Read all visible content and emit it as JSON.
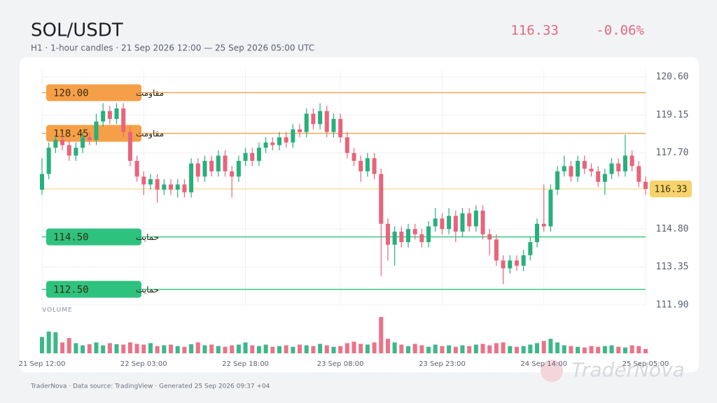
{
  "chart_data": {
    "type": "candlestick",
    "title": "SOL/USDT",
    "subtitle": "H1 · 1-hour candles · 21 Sep 2026 12:00 — 25 Sep 2026 05:00 UTC",
    "last_price": 116.33,
    "change": "-0.06%",
    "volume_label": "VOLUME",
    "footer": "TraderNova · Data source: TradingView · Generated 25 Sep 2026 09:37 +04",
    "watermark": "TraderNova",
    "up_color": "#26b07c",
    "down_color": "#e8647c",
    "ylim": [
      111.9,
      120.6
    ],
    "yticks": [
      {
        "value": 120.6,
        "label": "120.60"
      },
      119.15,
      {
        "value": 117.7,
        "label": "117.70"
      },
      {
        "value": 114.8,
        "label": "114.80"
      },
      113.35,
      {
        "value": 111.9,
        "label": "111.90"
      }
    ],
    "grid": true,
    "levels": [
      {
        "name": "مقاومت",
        "value": 120.0,
        "value_label": "120.00",
        "color": "#f5a048"
      },
      {
        "name": "مقاومت",
        "value": 118.45,
        "value_label": "118.45",
        "color": "#f5a048"
      },
      {
        "name": "حمایت",
        "value": 114.5,
        "value_label": "114.50",
        "color": "#2ec27e"
      },
      {
        "name": "حمایت",
        "value": 112.5,
        "value_label": "112.50",
        "color": "#2ec27e"
      }
    ],
    "categories": [
      "21 Sep 12:00",
      null,
      null,
      null,
      null,
      null,
      null,
      null,
      null,
      null,
      null,
      null,
      null,
      null,
      null,
      "22 Sep 03:00",
      null,
      null,
      null,
      null,
      null,
      null,
      null,
      null,
      null,
      null,
      null,
      null,
      null,
      null,
      "22 Sep 18:00",
      null,
      null,
      null,
      null,
      null,
      null,
      null,
      null,
      null,
      null,
      null,
      null,
      null,
      "23 Sep 08:00",
      null,
      null,
      null,
      null,
      null,
      null,
      null,
      null,
      null,
      null,
      null,
      null,
      null,
      null,
      "23 Sep 23:00",
      null,
      null,
      null,
      null,
      null,
      null,
      null,
      null,
      null,
      null,
      null,
      null,
      null,
      null,
      "24 Sep 14:00",
      null,
      null,
      null,
      null,
      null,
      null,
      null,
      null,
      null,
      null,
      null,
      null,
      null,
      null,
      "25 Sep 05:00"
    ],
    "open": [
      116.3,
      116.9,
      117.9,
      118.2,
      118.0,
      117.6,
      117.9,
      118.3,
      118.2,
      118.9,
      119.3,
      119.0,
      119.4,
      118.5,
      117.4,
      116.8,
      116.5,
      116.7,
      116.3,
      116.5,
      116.3,
      116.5,
      116.2,
      117.3,
      116.8,
      117.4,
      117.0,
      117.6,
      117.0,
      116.8,
      117.4,
      117.7,
      117.4,
      117.9,
      118.1,
      118.0,
      118.3,
      118.1,
      118.6,
      118.5,
      119.2,
      118.8,
      119.3,
      118.5,
      119.0,
      118.3,
      117.7,
      117.4,
      117.0,
      117.5,
      116.9,
      115.0,
      114.2,
      114.7,
      114.3,
      114.8,
      114.6,
      114.3,
      114.9,
      115.2,
      114.8,
      115.3,
      114.7,
      115.4,
      114.9,
      115.5,
      114.6,
      114.4,
      113.6,
      113.3,
      113.6,
      113.4,
      113.8,
      114.3,
      115.0,
      114.9,
      116.3,
      117.0,
      117.2,
      116.8,
      117.4,
      117.1,
      117.0,
      116.6,
      116.9,
      117.3,
      117.0,
      117.6,
      117.2,
      116.6
    ],
    "high": [
      117.5,
      118.1,
      118.4,
      118.4,
      118.2,
      118.1,
      118.5,
      118.5,
      119.2,
      119.6,
      119.5,
      119.6,
      119.6,
      118.7,
      117.6,
      117.0,
      116.9,
      116.9,
      116.7,
      116.7,
      116.7,
      116.7,
      117.5,
      117.5,
      117.6,
      117.6,
      117.8,
      117.8,
      117.2,
      117.6,
      117.9,
      117.9,
      118.1,
      118.3,
      118.3,
      118.5,
      118.5,
      118.8,
      118.8,
      119.4,
      119.4,
      119.6,
      119.5,
      119.2,
      119.2,
      118.5,
      117.9,
      117.6,
      117.7,
      117.7,
      117.1,
      115.2,
      114.9,
      114.9,
      115.0,
      115.0,
      114.8,
      115.1,
      115.6,
      115.4,
      115.6,
      115.5,
      115.6,
      115.6,
      115.7,
      115.7,
      114.8,
      114.6,
      113.8,
      113.8,
      113.8,
      114.0,
      114.5,
      115.2,
      116.5,
      116.5,
      117.2,
      117.6,
      117.4,
      117.6,
      117.6,
      117.3,
      117.2,
      117.1,
      117.5,
      117.5,
      118.4,
      117.8,
      117.4,
      116.8
    ],
    "low": [
      116.1,
      116.7,
      117.7,
      117.8,
      117.4,
      117.4,
      117.7,
      118.0,
      118.0,
      118.7,
      118.8,
      118.8,
      118.3,
      117.2,
      116.6,
      116.1,
      116.3,
      115.8,
      116.1,
      116.1,
      116.0,
      116.0,
      116.0,
      116.6,
      116.6,
      116.8,
      116.8,
      116.8,
      116.0,
      116.6,
      117.2,
      117.2,
      117.2,
      117.7,
      117.8,
      117.8,
      117.9,
      117.9,
      118.3,
      118.3,
      118.6,
      118.6,
      118.3,
      118.3,
      118.1,
      117.5,
      117.2,
      116.6,
      116.8,
      116.7,
      113.0,
      113.6,
      113.4,
      114.1,
      114.1,
      114.4,
      114.1,
      114.1,
      114.7,
      114.6,
      114.6,
      114.3,
      114.5,
      114.7,
      114.7,
      114.4,
      113.8,
      113.4,
      112.7,
      113.1,
      113.2,
      113.2,
      113.6,
      114.1,
      114.7,
      114.7,
      116.1,
      116.8,
      116.6,
      116.6,
      116.9,
      116.8,
      116.4,
      116.1,
      116.7,
      116.8,
      116.8,
      117.0,
      116.4,
      116.1
    ],
    "close": [
      116.9,
      117.9,
      118.2,
      118.0,
      117.6,
      117.9,
      118.3,
      118.2,
      118.9,
      119.3,
      119.0,
      119.4,
      118.5,
      117.4,
      116.8,
      116.5,
      116.7,
      116.3,
      116.5,
      116.3,
      116.5,
      116.2,
      117.3,
      116.8,
      117.4,
      117.0,
      117.6,
      117.0,
      116.8,
      117.4,
      117.7,
      117.4,
      117.9,
      118.1,
      118.0,
      118.3,
      118.1,
      118.6,
      118.5,
      119.2,
      118.8,
      119.3,
      118.5,
      119.0,
      118.3,
      117.7,
      117.4,
      117.0,
      117.5,
      116.9,
      115.0,
      114.2,
      114.7,
      114.3,
      114.8,
      114.6,
      114.3,
      114.9,
      115.2,
      114.8,
      115.3,
      114.7,
      115.4,
      114.9,
      115.5,
      114.6,
      114.4,
      113.6,
      113.3,
      113.6,
      113.4,
      113.8,
      114.3,
      115.0,
      114.9,
      116.3,
      117.0,
      117.2,
      116.8,
      117.4,
      117.1,
      117.0,
      116.6,
      116.9,
      117.3,
      117.0,
      117.6,
      117.2,
      116.6,
      116.33
    ],
    "volume": [
      45,
      60,
      58,
      30,
      42,
      28,
      22,
      25,
      30,
      22,
      28,
      25,
      24,
      30,
      26,
      24,
      28,
      20,
      22,
      24,
      20,
      18,
      25,
      30,
      22,
      24,
      20,
      18,
      22,
      24,
      30,
      22,
      20,
      24,
      18,
      20,
      22,
      18,
      24,
      22,
      20,
      26,
      22,
      18,
      20,
      28,
      32,
      26,
      24,
      30,
      100,
      40,
      30,
      24,
      20,
      26,
      22,
      18,
      24,
      20,
      22,
      18,
      22,
      20,
      24,
      26,
      22,
      28,
      30,
      20,
      18,
      20,
      24,
      28,
      34,
      40,
      30,
      22,
      20,
      18,
      16,
      20,
      18,
      20,
      22,
      18,
      16,
      22,
      20,
      12
    ]
  }
}
